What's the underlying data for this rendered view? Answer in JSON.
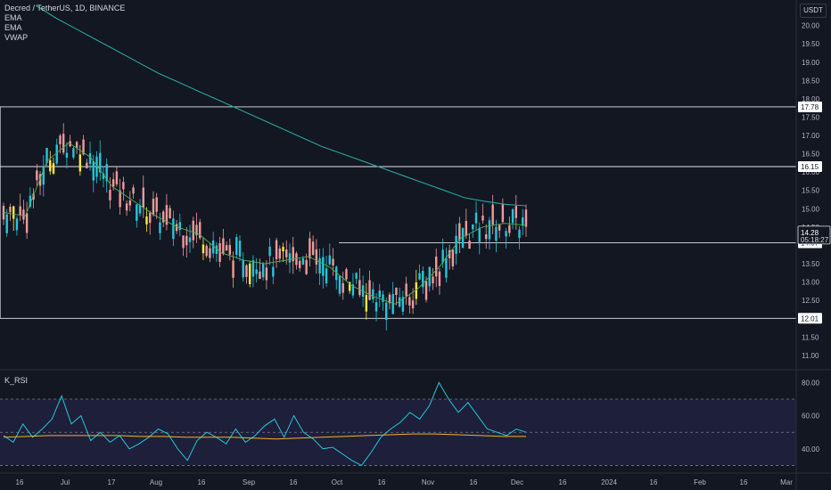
{
  "header": {
    "symbol_line": "Decred / TetherUS, 1D, BINANCE",
    "indicators": [
      "EMA",
      "EMA",
      "VWAP"
    ],
    "currency": "USDT"
  },
  "rsi_panel": {
    "title": "K_RSI"
  },
  "badges": {
    "countdown": "05:18:27"
  },
  "colors": {
    "background": "#131722",
    "up_candle": "#26c6da",
    "down_candle": "#ef9a9a",
    "highlight_candle": "#ffeb3b",
    "ema_long": "#26a69a",
    "ema_short": "#4caf50",
    "rsi_line": "#26c6da",
    "rsi_signal": "#f0b429",
    "level_line": "#e0e3eb"
  },
  "chart_data": [
    {
      "type": "candlestick",
      "x_axis_ticks": [
        "16",
        "Jul",
        "17",
        "Aug",
        "16",
        "Sep",
        "16",
        "Oct",
        "16",
        "Nov",
        "16",
        "Dec",
        "16",
        "2024",
        "16",
        "Feb",
        "16",
        "Mar"
      ],
      "y_axis_ticks": [
        "20.00",
        "19.50",
        "19.00",
        "18.50",
        "18.00",
        "17.50",
        "17.00",
        "16.50",
        "16.00",
        "15.50",
        "15.00",
        "14.50",
        "14.00",
        "13.50",
        "13.00",
        "12.50",
        "12.00",
        "11.50",
        "11.00"
      ],
      "ylim": [
        10.85,
        20.55
      ],
      "horizontal_levels": [
        {
          "value": 17.78,
          "label": "17.78"
        },
        {
          "value": 16.15,
          "label": "16.15"
        },
        {
          "value": 14.07,
          "label": "14.07"
        },
        {
          "value": 12.01,
          "label": "12.01"
        }
      ],
      "current_price": {
        "value": 14.28,
        "label": "14.28"
      },
      "series": [
        {
          "name": "Long EMA",
          "values": [
            20.55,
            20.2,
            19.9,
            19.6,
            19.3,
            19.0,
            18.7,
            18.45,
            18.2,
            17.95,
            17.7,
            17.45,
            17.2,
            16.95,
            16.7,
            16.5,
            16.3,
            16.1,
            15.9,
            15.7,
            15.5,
            15.3,
            15.2,
            15.12,
            15.08
          ]
        },
        {
          "name": "Short EMA",
          "values": [
            14.9,
            14.8,
            16.3,
            16.8,
            16.4,
            15.6,
            15.2,
            14.8,
            14.5,
            14.3,
            13.8,
            13.6,
            13.5,
            13.6,
            13.7,
            13.4,
            12.9,
            12.6,
            12.4,
            12.8,
            13.4,
            14.2,
            14.5,
            14.6,
            14.55
          ]
        }
      ]
    },
    {
      "type": "line",
      "title": "K_RSI",
      "y_axis_ticks": [
        "80.00",
        "60.00",
        "40.00"
      ],
      "ylim": [
        27,
        84
      ],
      "bands": [
        30,
        50,
        70
      ],
      "series": [
        {
          "name": "RSI",
          "values": [
            48,
            44,
            55,
            47,
            52,
            58,
            72,
            55,
            60,
            45,
            50,
            44,
            48,
            40,
            43,
            47,
            52,
            49,
            40,
            33,
            45,
            50,
            47,
            43,
            52,
            44,
            48,
            54,
            58,
            47,
            60,
            50,
            46,
            40,
            41,
            37,
            33,
            30,
            38,
            47,
            52,
            56,
            62,
            58,
            66,
            80,
            70,
            62,
            68,
            60,
            52,
            50,
            48,
            52,
            50
          ]
        },
        {
          "name": "Signal",
          "values": [
            47,
            47.5,
            48,
            48,
            48,
            48,
            47.5,
            47.5,
            47,
            47,
            47,
            46.5,
            46,
            46.5,
            47,
            47.5,
            48,
            48.5,
            49,
            49,
            48.5,
            48,
            47.5,
            47.5
          ]
        }
      ]
    }
  ]
}
